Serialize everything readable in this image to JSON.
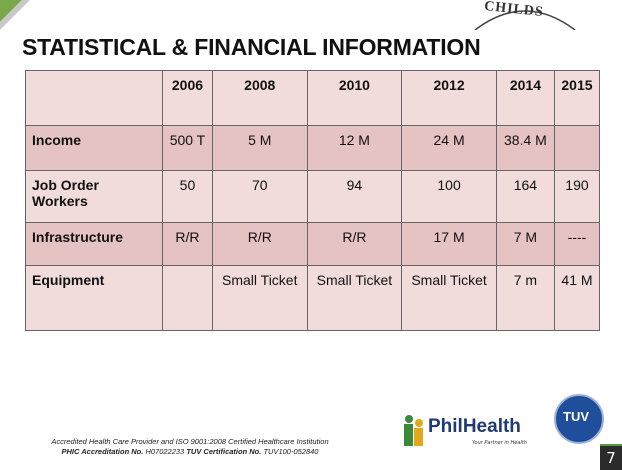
{
  "corner_logo": "CHILDS",
  "title": "STATISTICAL & FINANCIAL INFORMATION",
  "table": {
    "header": [
      null,
      "2006",
      "2008",
      "2010",
      "2012",
      "2014",
      "2015"
    ],
    "rows": [
      [
        "Income",
        "500 T",
        "5 M",
        "12 M",
        "24 M",
        "38.4 M",
        null
      ],
      [
        "Job Order Workers",
        "50",
        "70",
        "94",
        "100",
        "164",
        "190"
      ],
      [
        "Infrastructure",
        "R/R",
        "R/R",
        "R/R",
        "17 M",
        "7 M",
        "----"
      ],
      [
        "Equipment",
        null,
        "Small Ticket",
        "Small Ticket",
        "Small Ticket",
        "7 m",
        "41 M"
      ]
    ]
  },
  "footer": {
    "line1": "Accredited Health Care Provider and ISO 9001:2008 Certified Healthcare Institution",
    "line2": [
      "PHIC Accreditation No.",
      "H07022233",
      "TUV Certification No.",
      "TUV100-052840"
    ]
  },
  "philhealth": {
    "name": "PhilHealth",
    "tagline": "Your Partner in Health"
  },
  "tuv": "TUV",
  "page_number": "7"
}
